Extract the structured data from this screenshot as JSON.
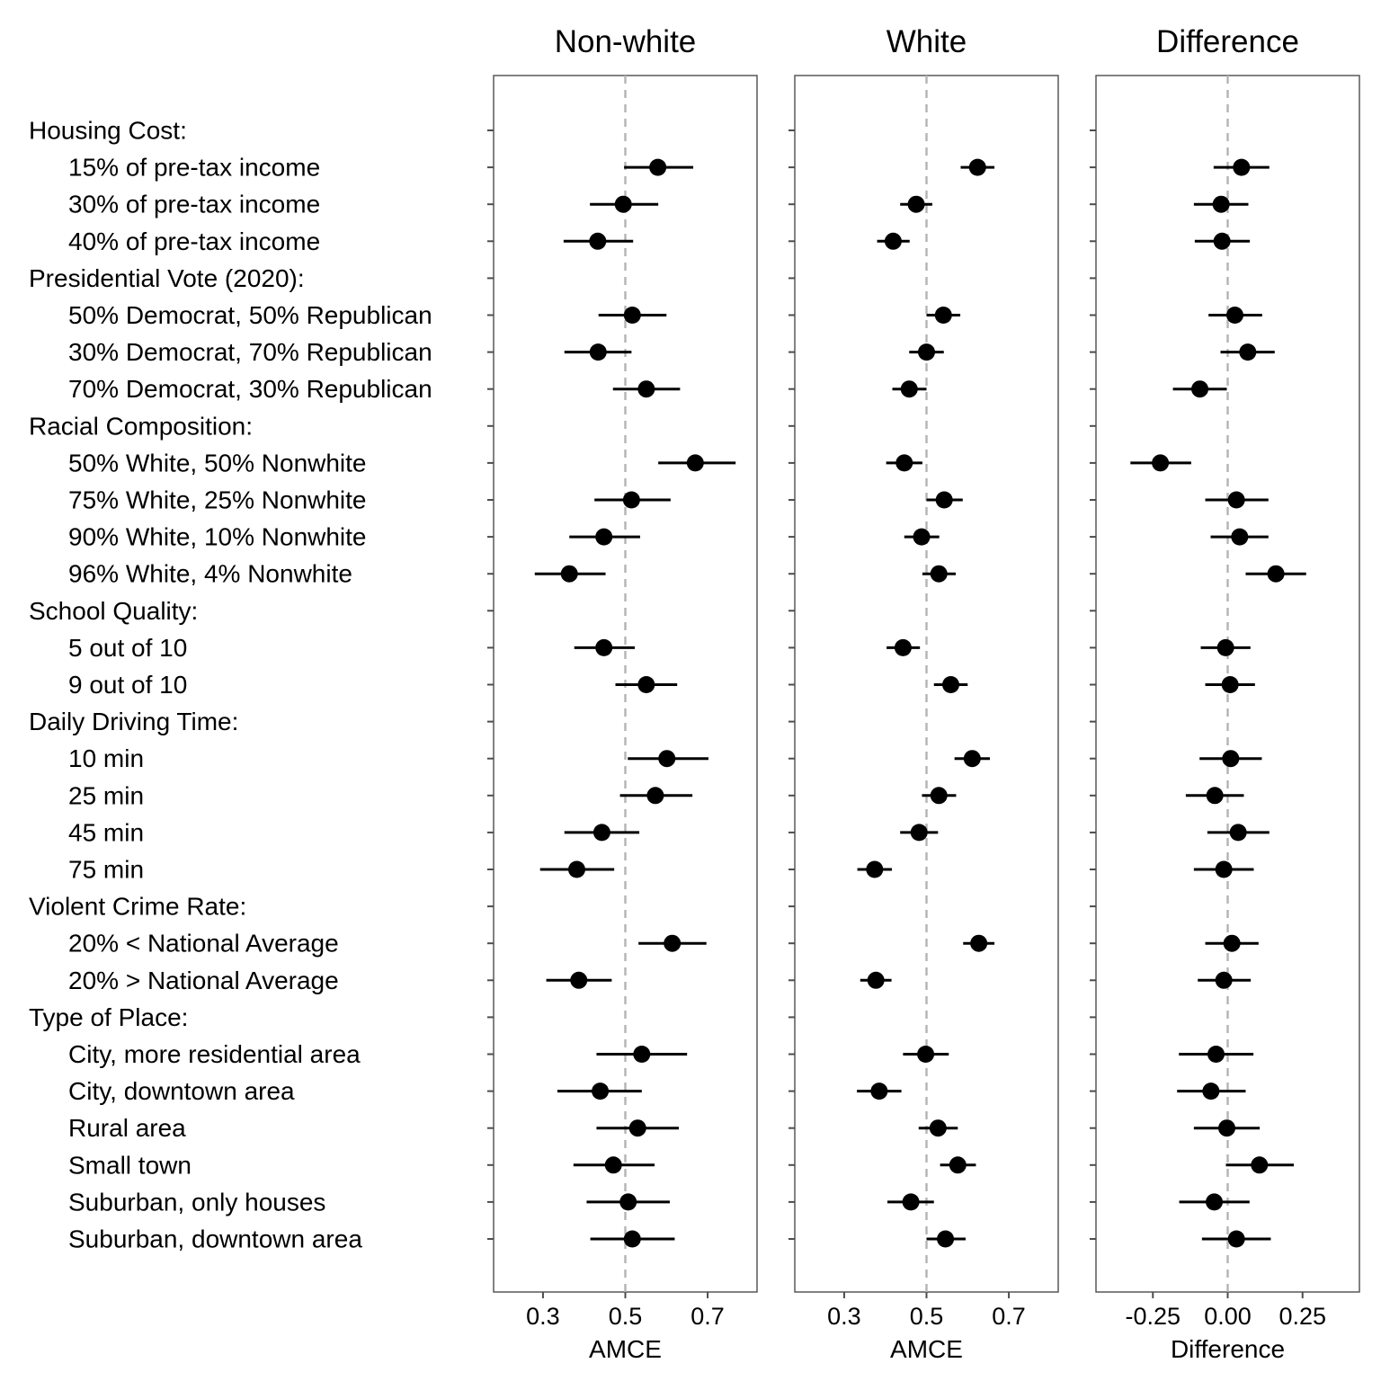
{
  "chart_data": {
    "type": "dot-whisker",
    "facet_axis": "AMCE / Difference",
    "row_labels": [
      "Housing Cost:",
      "15% of pre-tax income",
      "30% of pre-tax income",
      "40% of pre-tax income",
      "Presidential Vote (2020):",
      "50% Democrat, 50% Republican",
      "30% Democrat, 70% Republican",
      "70% Democrat, 30% Republican",
      "Racial Composition:",
      "50% White, 50% Nonwhite",
      "75% White, 25% Nonwhite",
      "90% White, 10% Nonwhite",
      "96% White, 4% Nonwhite",
      "School Quality:",
      "5 out of 10",
      "9 out of 10",
      "Daily Driving Time:",
      "10 min",
      "25 min",
      "45 min",
      "75 min",
      "Violent Crime Rate:",
      "20% < National Average",
      "20% > National Average",
      "Type of Place:",
      "City, more residential area",
      "City, downtown area",
      "Rural area",
      "Small town",
      "Suburban, only houses",
      "Suburban, downtown area"
    ],
    "row_is_header": [
      true,
      false,
      false,
      false,
      true,
      false,
      false,
      false,
      true,
      false,
      false,
      false,
      false,
      true,
      false,
      false,
      true,
      false,
      false,
      false,
      false,
      true,
      false,
      false,
      true,
      false,
      false,
      false,
      false,
      false,
      false
    ],
    "panels": [
      {
        "title": "Non-white",
        "xlabel": "AMCE",
        "xlim": [
          0.18,
          0.82
        ],
        "ticks": [
          0.3,
          0.5,
          0.7
        ],
        "tick_labels": [
          "0.3",
          "0.5",
          "0.7"
        ],
        "ref_line": 0.5,
        "estimates": [
          null,
          0.579,
          0.495,
          0.433,
          null,
          0.517,
          0.434,
          0.551,
          null,
          0.67,
          0.515,
          0.448,
          0.364,
          null,
          0.448,
          0.551,
          null,
          0.601,
          0.573,
          0.443,
          0.382,
          null,
          0.614,
          0.387,
          null,
          0.54,
          0.439,
          0.53,
          0.471,
          0.507,
          0.517
        ],
        "ci_low": [
          null,
          0.497,
          0.414,
          0.35,
          null,
          0.435,
          0.352,
          0.47,
          null,
          0.58,
          0.425,
          0.364,
          0.28,
          null,
          0.376,
          0.476,
          null,
          0.506,
          0.487,
          0.352,
          0.293,
          null,
          0.532,
          0.308,
          null,
          0.43,
          0.335,
          0.43,
          0.374,
          0.406,
          0.415
        ],
        "ci_high": [
          null,
          0.665,
          0.58,
          0.519,
          null,
          0.6,
          0.515,
          0.633,
          null,
          0.768,
          0.61,
          0.536,
          0.452,
          null,
          0.523,
          0.626,
          null,
          0.702,
          0.663,
          0.534,
          0.473,
          null,
          0.697,
          0.467,
          null,
          0.65,
          0.54,
          0.63,
          0.571,
          0.608,
          0.62
        ]
      },
      {
        "title": "White",
        "xlabel": "AMCE",
        "xlim": [
          0.18,
          0.82
        ],
        "ticks": [
          0.3,
          0.5,
          0.7
        ],
        "tick_labels": [
          "0.3",
          "0.5",
          "0.7"
        ],
        "ref_line": 0.5,
        "estimates": [
          null,
          0.624,
          0.475,
          0.419,
          null,
          0.541,
          0.5,
          0.458,
          null,
          0.446,
          0.543,
          0.488,
          0.53,
          null,
          0.443,
          0.559,
          null,
          0.611,
          0.53,
          0.482,
          0.374,
          null,
          0.627,
          0.377,
          null,
          0.498,
          0.385,
          0.528,
          0.576,
          0.462,
          0.546
        ],
        "ci_low": [
          null,
          0.583,
          0.436,
          0.38,
          null,
          0.5,
          0.458,
          0.417,
          null,
          0.402,
          0.5,
          0.446,
          0.49,
          null,
          0.403,
          0.518,
          null,
          0.568,
          0.489,
          0.436,
          0.332,
          null,
          0.589,
          0.339,
          null,
          0.443,
          0.331,
          0.481,
          0.533,
          0.405,
          0.5
        ],
        "ci_high": [
          null,
          0.665,
          0.514,
          0.459,
          null,
          0.582,
          0.542,
          0.5,
          null,
          0.49,
          0.588,
          0.531,
          0.571,
          null,
          0.484,
          0.6,
          null,
          0.654,
          0.572,
          0.528,
          0.416,
          null,
          0.665,
          0.415,
          null,
          0.554,
          0.439,
          0.576,
          0.62,
          0.518,
          0.595
        ]
      },
      {
        "title": "Difference",
        "xlabel": "Difference",
        "xlim": [
          -0.44,
          0.44
        ],
        "ticks": [
          -0.25,
          0.0,
          0.25
        ],
        "tick_labels": [
          "-0.25",
          "0.00",
          "0.25"
        ],
        "ref_line": 0.0,
        "estimates": [
          null,
          0.046,
          -0.022,
          -0.019,
          null,
          0.024,
          0.067,
          -0.093,
          null,
          -0.225,
          0.029,
          0.04,
          0.161,
          null,
          -0.007,
          0.008,
          null,
          0.01,
          -0.043,
          0.035,
          -0.013,
          null,
          0.014,
          -0.013,
          null,
          -0.039,
          -0.056,
          -0.003,
          0.106,
          -0.045,
          0.029
        ],
        "ci_low": [
          null,
          -0.047,
          -0.113,
          -0.11,
          null,
          -0.064,
          -0.024,
          -0.183,
          null,
          -0.325,
          -0.075,
          -0.057,
          0.06,
          null,
          -0.09,
          -0.075,
          null,
          -0.094,
          -0.14,
          -0.068,
          -0.113,
          null,
          -0.075,
          -0.1,
          null,
          -0.163,
          -0.169,
          -0.113,
          -0.006,
          -0.162,
          -0.086
        ],
        "ci_high": [
          null,
          0.139,
          0.069,
          0.074,
          null,
          0.115,
          0.157,
          -0.003,
          null,
          -0.122,
          0.136,
          0.136,
          0.262,
          null,
          0.076,
          0.091,
          null,
          0.114,
          0.054,
          0.139,
          0.087,
          null,
          0.103,
          0.077,
          null,
          0.086,
          0.06,
          0.107,
          0.221,
          0.073,
          0.144
        ]
      }
    ]
  }
}
